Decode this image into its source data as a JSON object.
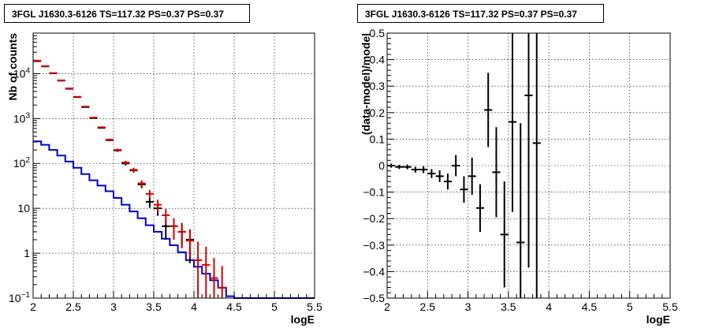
{
  "chart_data": [
    {
      "type": "line",
      "title": "3FGL J1630.3-6126 TS=117.32 PS=0.37 PS=0.37",
      "xlabel": "logE",
      "ylabel": "Nb of counts",
      "xlim": [
        2,
        5.5
      ],
      "ylim": [
        0.1,
        80000
      ],
      "yscale": "log",
      "grid": true,
      "x_ticks": [
        "2",
        "2.5",
        "3",
        "3.5",
        "4",
        "4.5",
        "5",
        "5.5"
      ],
      "y_ticks": [
        "10^-1",
        "1",
        "10",
        "10^2",
        "10^3",
        "10^4"
      ],
      "series": [
        {
          "color": "#0000cc",
          "kind": "step",
          "bin_width": 0.1,
          "x": [
            2.05,
            2.15,
            2.25,
            2.35,
            2.45,
            2.55,
            2.65,
            2.75,
            2.85,
            2.95,
            3.05,
            3.15,
            3.25,
            3.35,
            3.45,
            3.55,
            3.65,
            3.75,
            3.85,
            3.95,
            4.05,
            4.15,
            4.25,
            4.35,
            4.45,
            4.55,
            4.65,
            4.75,
            4.85,
            4.95,
            5.05,
            5.15,
            5.25,
            5.35,
            5.45
          ],
          "values": [
            310,
            260,
            200,
            150,
            110,
            80,
            58,
            42,
            32,
            24,
            17,
            12,
            8.5,
            6,
            4.2,
            3,
            2.1,
            1.5,
            1.05,
            0.7,
            0.5,
            0.35,
            0.25,
            0.17,
            0.11,
            0.1,
            0.1,
            0.1,
            0.1,
            0.1,
            0.1,
            0.1,
            0.1,
            0.1,
            0.1
          ]
        },
        {
          "color": "#000000",
          "kind": "errorbar",
          "x": [
            2.05,
            2.15,
            2.25,
            2.35,
            2.45,
            2.55,
            2.65,
            2.75,
            2.85,
            2.95,
            3.05,
            3.15,
            3.25,
            3.35,
            3.45,
            3.55,
            3.65,
            3.75,
            3.85,
            3.95
          ],
          "values": [
            19000,
            14500,
            10200,
            7000,
            4600,
            3000,
            1800,
            1020,
            620,
            330,
            195,
            100,
            70,
            34,
            14,
            10,
            4,
            4,
            3,
            2
          ],
          "err_low": [
            150,
            120,
            100,
            80,
            70,
            55,
            42,
            32,
            25,
            18,
            14,
            10,
            8,
            5.8,
            3.7,
            3.2,
            2,
            2,
            1.7,
            1.4
          ],
          "err_high": [
            150,
            120,
            100,
            80,
            70,
            55,
            42,
            32,
            25,
            18,
            14,
            10,
            8,
            5.8,
            3.7,
            3.2,
            2,
            2,
            1.7,
            1.4
          ]
        },
        {
          "color": "#dd0000",
          "kind": "errorbar",
          "x": [
            2.05,
            2.15,
            2.25,
            2.35,
            2.45,
            2.55,
            2.65,
            2.75,
            2.85,
            2.95,
            3.05,
            3.15,
            3.25,
            3.35,
            3.45,
            3.55,
            3.65,
            3.75,
            3.85,
            3.95,
            4.05,
            4.15,
            4.25,
            4.35
          ],
          "values": [
            19500,
            14700,
            10300,
            7100,
            4700,
            3050,
            1850,
            1050,
            640,
            340,
            200,
            105,
            72,
            36,
            21,
            12,
            7,
            4,
            3,
            1.9,
            0.7,
            0.55,
            0.28,
            0.17
          ],
          "err_low": [
            150,
            120,
            100,
            80,
            70,
            55,
            42,
            32,
            25,
            18,
            14,
            10,
            8,
            6,
            4.6,
            3.5,
            2.6,
            2,
            1.7,
            1.1,
            0.62,
            0.45,
            0.22,
            0.13
          ],
          "err_high": [
            150,
            120,
            100,
            80,
            70,
            55,
            42,
            32,
            25,
            18,
            14,
            10,
            8,
            6,
            4.6,
            3.5,
            2.6,
            2,
            1.7,
            1.4,
            1.1,
            0.85,
            0.5,
            0.35
          ]
        }
      ]
    },
    {
      "type": "scatter",
      "title": "3FGL J1630.3-6126 TS=117.32 PS=0.37 PS=0.37",
      "xlabel": "logE",
      "ylabel": "(data-model)/model",
      "xlim": [
        2,
        5.5
      ],
      "ylim": [
        -0.5,
        0.5
      ],
      "grid": true,
      "x_ticks": [
        "2",
        "2.5",
        "3",
        "3.5",
        "4",
        "4.5",
        "5",
        "5.5"
      ],
      "y_ticks": [
        "−0.5",
        "−0.4",
        "−0.3",
        "−0.2",
        "−0.1",
        "0",
        "0.1",
        "0.2",
        "0.3",
        "0.4",
        "0.5"
      ],
      "series": [
        {
          "color": "#000000",
          "kind": "errorbar",
          "x": [
            2.05,
            2.15,
            2.25,
            2.35,
            2.45,
            2.55,
            2.65,
            2.75,
            2.85,
            2.95,
            3.05,
            3.15,
            3.25,
            3.35,
            3.45,
            3.55,
            3.65,
            3.75,
            3.85
          ],
          "values": [
            0.0,
            -0.005,
            -0.005,
            -0.015,
            -0.015,
            -0.03,
            -0.04,
            -0.06,
            0.0,
            -0.09,
            -0.04,
            -0.16,
            0.21,
            -0.025,
            -0.26,
            0.165,
            -0.29,
            0.265,
            0.085
          ],
          "err": [
            0.008,
            0.008,
            0.009,
            0.011,
            0.013,
            0.017,
            0.022,
            0.03,
            0.04,
            0.05,
            0.07,
            0.09,
            0.14,
            0.17,
            0.2,
            0.34,
            0.45,
            0.65,
            0.9
          ]
        }
      ]
    }
  ]
}
